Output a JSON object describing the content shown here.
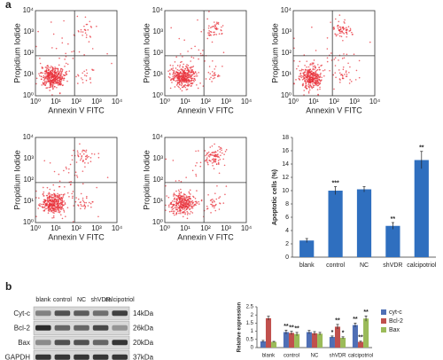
{
  "panels": {
    "a": "a",
    "b": "b"
  },
  "flow_plots": {
    "x_label": "Annexin V FITC",
    "y_label": "Propidium Iodide",
    "ticks": [
      "10⁰",
      "10¹",
      "10²",
      "10³",
      "10⁴"
    ]
  },
  "blot": {
    "lanes": [
      "blank",
      "control",
      "NC",
      "shVDR",
      "calcipotriol"
    ],
    "proteins": [
      {
        "name": "Cyt-c",
        "size": "14kDa"
      },
      {
        "name": "Bcl-2",
        "size": "26kDa"
      },
      {
        "name": "Bax",
        "size": "20kDa"
      },
      {
        "name": "GAPDH",
        "size": "37kDa"
      }
    ]
  },
  "chart_data": [
    {
      "type": "bar",
      "y_label": "Apoptotic cells (%)",
      "categories": [
        "blank",
        "control",
        "NC",
        "shVDR",
        "calcipotriol"
      ],
      "values": [
        2.5,
        10,
        10.2,
        4.7,
        14.6
      ],
      "errors": [
        0.3,
        0.6,
        0.4,
        0.5,
        1.3
      ],
      "annotations": [
        null,
        "***",
        null,
        "**",
        "**"
      ],
      "color": "#2f6fbf",
      "ylim": [
        0,
        18
      ],
      "yticks": [
        0,
        2,
        4,
        6,
        8,
        10,
        12,
        14,
        16,
        18
      ]
    },
    {
      "type": "grouped_bar",
      "y_label": "Relative expression",
      "categories": [
        "blank",
        "control",
        "NC",
        "shVDR",
        "calcipotriol"
      ],
      "series": [
        {
          "name": "cyt-c",
          "color": "#4f6fb5",
          "values": [
            0.38,
            0.95,
            0.95,
            0.65,
            1.38
          ],
          "errors": [
            0.06,
            0.12,
            0.1,
            0.06,
            0.12
          ],
          "annotations": [
            null,
            "**",
            null,
            "*",
            "**"
          ]
        },
        {
          "name": "Bcl-2",
          "color": "#c0504d",
          "values": [
            1.8,
            0.9,
            0.88,
            1.28,
            0.35
          ],
          "errors": [
            0.12,
            0.1,
            0.1,
            0.14,
            0.04
          ],
          "annotations": [
            null,
            "**",
            null,
            "**",
            "**"
          ]
        },
        {
          "name": "Bax",
          "color": "#9bbb59",
          "values": [
            0.35,
            0.83,
            0.85,
            0.6,
            1.78
          ],
          "errors": [
            0.03,
            0.1,
            0.08,
            0.06,
            0.16
          ],
          "annotations": [
            null,
            "**",
            null,
            "*",
            "**"
          ]
        }
      ],
      "legend": "right",
      "ylim": [
        0,
        2.5
      ],
      "yticks": [
        0,
        0.5,
        1,
        1.5,
        2,
        2.5
      ]
    }
  ]
}
